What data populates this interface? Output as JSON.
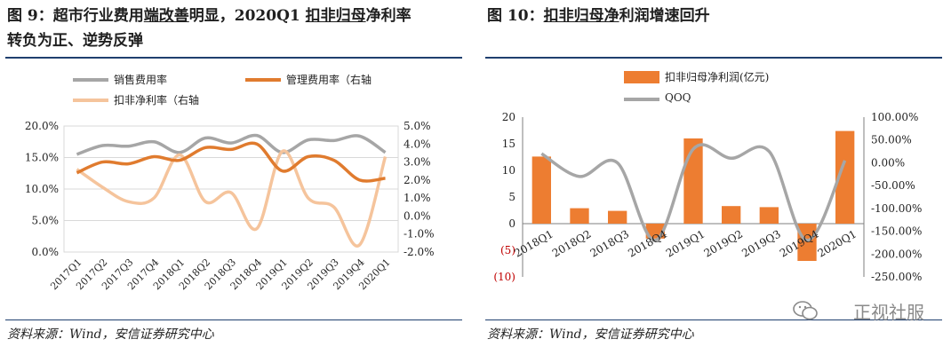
{
  "left": {
    "title_line1_a": "图 9：超市行业费用",
    "title_line1_b": "端改善",
    "title_line1_c": "明显，2020Q1 ",
    "title_line1_d": "扣非归母",
    "title_line1_e": "净利率",
    "title_line2": "转负为正、逆势反弹",
    "legend": [
      "销售费用率",
      "管理费用率（右轴",
      "扣非净利率（右轴"
    ],
    "source": "资料来源：Wind，安信证券研究中心"
  },
  "right": {
    "title_a": "图 10：",
    "title_b": "扣非归母净",
    "title_c": "利润增速回升",
    "legend": [
      "扣非归母净利润(亿元)",
      "QOQ"
    ],
    "source": "资料来源：Wind，安信证券研究中心"
  },
  "watermark": "正视社服",
  "colors": {
    "gray_line": "#a6a6a6",
    "orange_line": "#e07b2e",
    "peach_line": "#f5c49c",
    "bar": "#ed7d31",
    "accent_rule": "#1f3f6e",
    "negative_label": "#c00000"
  },
  "chart_data": [
    {
      "type": "line",
      "categories": [
        "2017Q1",
        "2017Q2",
        "2017Q3",
        "2017Q4",
        "2018Q1",
        "2018Q2",
        "2018Q3",
        "2018Q4",
        "2019Q1",
        "2019Q2",
        "2019Q3",
        "2019Q4",
        "2020Q1"
      ],
      "series": [
        {
          "name": "销售费用率",
          "axis": "left",
          "values": [
            15.5,
            16.9,
            16.8,
            17.5,
            15.8,
            18.1,
            17.3,
            18.5,
            15.8,
            17.8,
            17.7,
            18.4,
            15.8
          ]
        },
        {
          "name": "管理费用率（右轴",
          "axis": "right",
          "values": [
            2.4,
            3.0,
            2.9,
            3.3,
            3.1,
            3.8,
            3.7,
            4.0,
            2.5,
            3.3,
            3.1,
            2.0,
            2.1
          ]
        },
        {
          "name": "扣非净利率（右轴",
          "axis": "right",
          "values": [
            2.6,
            1.6,
            0.8,
            1.0,
            3.4,
            0.8,
            1.3,
            -0.7,
            3.6,
            1.0,
            0.5,
            -1.6,
            3.3
          ]
        }
      ],
      "ylim_left": [
        0,
        20
      ],
      "yticks_left": [
        "0.0%",
        "5.0%",
        "10.0%",
        "15.0%",
        "20.0%"
      ],
      "ylim_right": [
        -2,
        5
      ],
      "yticks_right": [
        "-2.0%",
        "-1.0%",
        "0.0%",
        "1.0%",
        "2.0%",
        "3.0%",
        "4.0%",
        "5.0%"
      ],
      "grid": true,
      "legend_position": "top"
    },
    {
      "type": "bar",
      "categories": [
        "2018Q1",
        "2018Q2",
        "2018Q3",
        "2018Q4",
        "2019Q1",
        "2019Q2",
        "2019Q3",
        "2019Q4",
        "2020Q1"
      ],
      "series": [
        {
          "name": "扣非归母净利润(亿元)",
          "axis": "left",
          "kind": "bar",
          "values": [
            12.6,
            2.9,
            2.4,
            -2.8,
            16.0,
            3.3,
            3.1,
            -7.0,
            17.4
          ]
        },
        {
          "name": "QOQ",
          "axis": "right",
          "kind": "line",
          "values": [
            20,
            -30,
            0,
            -170,
            30,
            10,
            25,
            -170,
            5
          ]
        }
      ],
      "ylim_left": [
        -10,
        20
      ],
      "yticks_left": [
        "(10)",
        "(5)",
        "0",
        "5",
        "10",
        "15",
        "20"
      ],
      "ylim_right": [
        -250,
        100
      ],
      "yticks_right": [
        "-250.00%",
        "-200.00%",
        "-150.00%",
        "-100.00%",
        "-50.00%",
        "0.00%",
        "50.00%",
        "100.00%"
      ],
      "grid": false,
      "legend_position": "top"
    }
  ]
}
